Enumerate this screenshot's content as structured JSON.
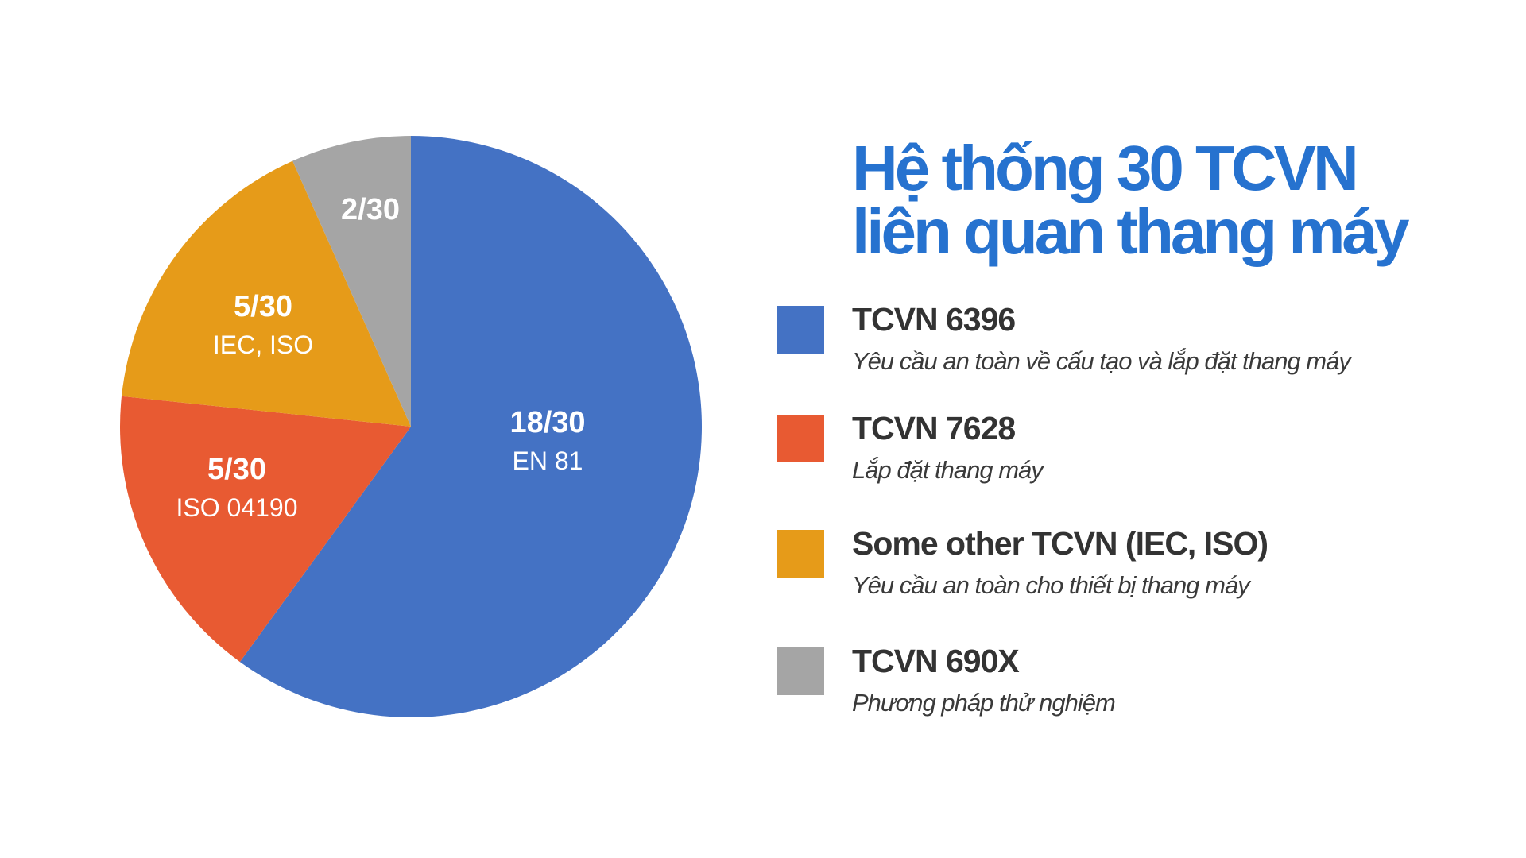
{
  "chart_data": {
    "type": "pie",
    "title": "Hệ thống 30 TCVN liên quan thang máy",
    "title_lines": [
      "Hệ thống 30 TCVN",
      "liên quan thang máy"
    ],
    "total": 30,
    "start_angle_deg": 0,
    "direction": "clockwise",
    "slices": [
      {
        "name": "TCVN 6396",
        "description": "Yêu cầu an toàn về cấu tạo và lắp đặt thang máy",
        "value": 18,
        "label": "18/30",
        "sublabel": "EN 81",
        "color": "#4472C4"
      },
      {
        "name": "TCVN 7628",
        "description": "Lắp đặt thang máy",
        "value": 5,
        "label": "5/30",
        "sublabel": "ISO 04190",
        "color": "#E85A32"
      },
      {
        "name": "Some other TCVN (IEC, ISO)",
        "description": "Yêu cầu an toàn cho thiết bị thang máy",
        "value": 5,
        "label": "5/30",
        "sublabel": "IEC, ISO",
        "color": "#E69B19"
      },
      {
        "name": "TCVN 690X",
        "description": "Phương pháp thử nghiệm",
        "value": 2,
        "label": "2/30",
        "sublabel": "",
        "color": "#A5A5A5"
      }
    ],
    "legend_placement": "right"
  },
  "colors": {
    "title": "#2672CF",
    "text": "#333333"
  }
}
